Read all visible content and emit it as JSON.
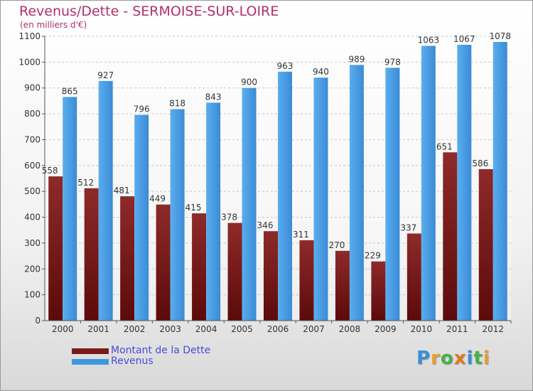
{
  "chart_data": {
    "type": "bar",
    "title": "Revenus/Dette - SERMOISE-SUR-LOIRE",
    "subtitle": "(en milliers d'€)",
    "categories": [
      "2000",
      "2001",
      "2002",
      "2003",
      "2004",
      "2005",
      "2006",
      "2007",
      "2008",
      "2009",
      "2010",
      "2011",
      "2012"
    ],
    "series": [
      {
        "name": "Montant de la Dette",
        "color": "#7a1a1a",
        "values": [
          558,
          512,
          481,
          449,
          415,
          378,
          346,
          311,
          270,
          229,
          337,
          651,
          586
        ]
      },
      {
        "name": "Revenus",
        "color": "#3f97e0",
        "values": [
          865,
          927,
          796,
          818,
          843,
          900,
          963,
          940,
          989,
          978,
          1063,
          1067,
          1078
        ]
      }
    ],
    "ylim": [
      0,
      1100
    ],
    "yticks": [
      0,
      100,
      200,
      300,
      400,
      500,
      600,
      700,
      800,
      900,
      1000,
      1100
    ],
    "grid": true,
    "legend_position": "bottom-left"
  },
  "logo": {
    "text": "Proxiti",
    "letters": [
      {
        "char": "P",
        "color": "#3a8fd6"
      },
      {
        "char": "r",
        "color": "#e0a030"
      },
      {
        "char": "o",
        "color": "#49b049"
      },
      {
        "char": "x",
        "color": "#e07a20"
      },
      {
        "char": "i",
        "color": "#3a8fd6"
      },
      {
        "char": "t",
        "color": "#49b049"
      },
      {
        "char": "i",
        "color": "#e0a030"
      }
    ]
  }
}
